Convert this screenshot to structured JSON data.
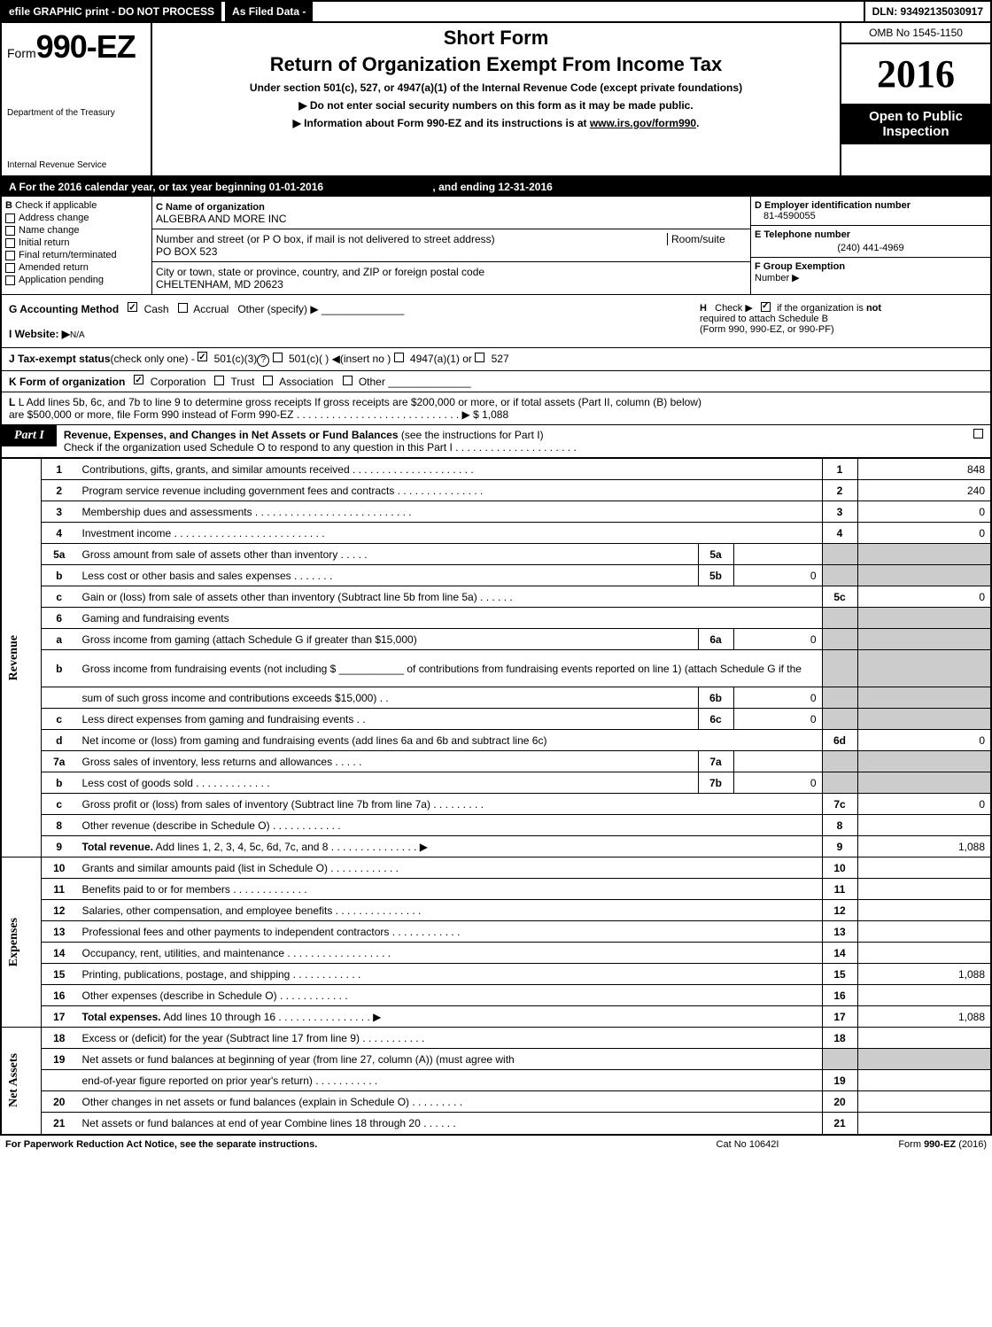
{
  "top": {
    "efile": "efile GRAPHIC print - DO NOT PROCESS",
    "asfiled": "As Filed Data -",
    "dln": "DLN: 93492135030917"
  },
  "header": {
    "form_word": "Form",
    "form_num": "990-EZ",
    "dept1": "Department of the Treasury",
    "dept2": "Internal Revenue Service",
    "short_form": "Short Form",
    "title": "Return of Organization Exempt From Income Tax",
    "subtitle": "Under section 501(c), 527, or 4947(a)(1) of the Internal Revenue Code (except private foundations)",
    "note1": "▶ Do not enter social security numbers on this form as it may be made public.",
    "note2": "▶ Information about Form 990-EZ and its instructions is at ",
    "note2_link": "www.irs.gov/form990",
    "omb": "OMB No 1545-1150",
    "year": "2016",
    "open1": "Open to Public",
    "open2": "Inspection"
  },
  "rowA": {
    "text": "A  For the 2016 calendar year, or tax year beginning 01-01-2016",
    "ending": ", and ending 12-31-2016"
  },
  "b": {
    "title": "B",
    "check_label": "Check if applicable",
    "items": [
      "Address change",
      "Name change",
      "Initial return",
      "Final return/terminated",
      "Amended return",
      "Application pending"
    ]
  },
  "c": {
    "label": "C",
    "name_label": "Name of organization",
    "name": "ALGEBRA AND MORE INC",
    "street_label": "Number and street (or P  O  box, if mail is not delivered to street address)",
    "room_label": "Room/suite",
    "street": "PO BOX 523",
    "city_label": "City or town, state or province, country, and ZIP or foreign postal code",
    "city": "CHELTENHAM, MD  20623"
  },
  "d": {
    "label": "D Employer identification number",
    "value": "81-4590055"
  },
  "e": {
    "label": "E Telephone number",
    "value": "(240) 441-4969"
  },
  "f": {
    "label": "F Group Exemption",
    "label2": "Number  ▶"
  },
  "g": {
    "label": "G Accounting Method",
    "cash": "Cash",
    "accrual": "Accrual",
    "other": "Other (specify) ▶"
  },
  "h": {
    "label": "H",
    "text1": "Check ▶",
    "text2": "if the organization is ",
    "not": "not",
    "text3": "required to attach Schedule B",
    "text4": "(Form 990, 990-EZ, or 990-PF)"
  },
  "i": {
    "label": "I Website: ▶",
    "value": "N/A"
  },
  "j": {
    "label": "J Tax-exempt status",
    "text": "(check only one) - ",
    "opts": [
      "501(c)(3)",
      "501(c)(  ) ◀(insert no )",
      "4947(a)(1) or",
      "527"
    ]
  },
  "k": {
    "label": "K Form of organization",
    "opts": [
      "Corporation",
      "Trust",
      "Association",
      "Other"
    ]
  },
  "l": {
    "text1": "L Add lines 5b, 6c, and 7b to line 9 to determine gross receipts  If gross receipts are $200,000 or more, or if total assets (Part II, column (B) below)",
    "text2": "are $500,000 or more, file Form 990 instead of Form 990-EZ  .  .  .  .  .  .  .  .  .  .  .  .  .  .  .  .  .  .  .  .  .  .  .  .  .  .  .  .  ▶ $ 1,088"
  },
  "part1": {
    "label": "Part I",
    "title": "Revenue, Expenses, and Changes in Net Assets or Fund Balances",
    "subtitle": "(see the instructions for Part I)",
    "checktext": "Check if the organization used Schedule O to respond to any question in this Part I .  .  .  .  .  .  .  .  .  .  .  .  .  .  .  .  .  .  .  .  ."
  },
  "sections": {
    "revenue": "Revenue",
    "expenses": "Expenses",
    "netassets": "Net Assets"
  },
  "lines": [
    {
      "n": "1",
      "desc": "Contributions, gifts, grants, and similar amounts received  .  .  .  .  .  .  .  .  .  .  .  .  .  .  .  .  .  .  .  .  .",
      "box": "1",
      "val": "848"
    },
    {
      "n": "2",
      "desc": "Program service revenue including government fees and contracts  .  .  .  .  .  .  .  .  .  .  .  .  .  .  .",
      "box": "2",
      "val": "240"
    },
    {
      "n": "3",
      "desc": "Membership dues and assessments  .  .  .  .  .  .  .  .  .  .  .  .  .  .  .  .  .  .  .  .  .  .  .  .  .  .  .",
      "box": "3",
      "val": "0"
    },
    {
      "n": "4",
      "desc": "Investment income  .  .  .  .  .  .  .  .  .  .  .  .  .  .  .  .  .  .  .  .  .  .  .  .  .  .",
      "box": "4",
      "val": "0"
    },
    {
      "n": "5a",
      "desc": "Gross amount from sale of assets other than inventory  .  .  .  .  .",
      "mid_box": "5a",
      "mid_val": "",
      "shaded": true
    },
    {
      "n": "b",
      "desc": "Less  cost or other basis and sales expenses  .  .  .  .  .  .  .",
      "mid_box": "5b",
      "mid_val": "0",
      "shaded": true
    },
    {
      "n": "c",
      "desc": "Gain or (loss) from sale of assets other than inventory (Subtract line 5b from line 5a) .  .  .  .  .  .",
      "box": "5c",
      "val": "0"
    },
    {
      "n": "6",
      "desc": "Gaming and fundraising events",
      "shaded": true,
      "nobox": true
    },
    {
      "n": "a",
      "desc": "Gross income from gaming (attach Schedule G if greater than $15,000)",
      "mid_box": "6a",
      "mid_val": "0",
      "shaded": true
    },
    {
      "n": "b",
      "desc": "Gross income from fundraising events (not including $ ___________ of contributions from fundraising events reported on line 1) (attach Schedule G if the",
      "shaded": true,
      "nobox": true,
      "tall": true
    },
    {
      "n": "",
      "desc": "sum of such gross income and contributions exceeds $15,000)   .  .",
      "mid_box": "6b",
      "mid_val": "0",
      "shaded": true
    },
    {
      "n": "c",
      "desc": "Less  direct expenses from gaming and fundraising events     .  .",
      "mid_box": "6c",
      "mid_val": "0",
      "shaded": true
    },
    {
      "n": "d",
      "desc": "Net income or (loss) from gaming and fundraising events (add lines 6a and 6b and subtract line 6c)",
      "box": "6d",
      "val": "0"
    },
    {
      "n": "7a",
      "desc": "Gross sales of inventory, less returns and allowances  .  .  .  .  .",
      "mid_box": "7a",
      "mid_val": "",
      "shaded": true
    },
    {
      "n": "b",
      "desc": "Less  cost of goods sold        .  .  .  .  .  .  .  .  .  .  .  .  .",
      "mid_box": "7b",
      "mid_val": "0",
      "shaded": true
    },
    {
      "n": "c",
      "desc": "Gross profit or (loss) from sales of inventory (Subtract line 7b from line 7a) .  .  .  .  .  .  .  .  .",
      "box": "7c",
      "val": "0"
    },
    {
      "n": "8",
      "desc": "Other revenue (describe in Schedule O)              .  .  .  .  .  .  .  .  .  .  .  .",
      "box": "8",
      "val": ""
    },
    {
      "n": "9",
      "desc": "Total revenue. Add lines 1, 2, 3, 4, 5c, 6d, 7c, and 8  .  .  .  .  .  .  .  .  .  .  .  .  .  .  .    ▶",
      "box": "9",
      "val": "1,088",
      "bold": true
    },
    {
      "n": "10",
      "desc": "Grants and similar amounts paid (list in Schedule O)       .  .  .  .  .  .  .  .  .  .  .  .",
      "box": "10",
      "val": ""
    },
    {
      "n": "11",
      "desc": "Benefits paid to or for members              .  .  .  .  .  .  .  .  .  .  .  .  .",
      "box": "11",
      "val": ""
    },
    {
      "n": "12",
      "desc": "Salaries, other compensation, and employee benefits  .  .  .  .  .  .  .  .  .  .  .  .  .  .  .",
      "box": "12",
      "val": ""
    },
    {
      "n": "13",
      "desc": "Professional fees and other payments to independent contractors  .  .  .  .  .  .  .  .  .  .  .  .",
      "box": "13",
      "val": ""
    },
    {
      "n": "14",
      "desc": "Occupancy, rent, utilities, and maintenance  .  .  .  .  .  .  .  .  .  .  .  .  .  .  .  .  .  .",
      "box": "14",
      "val": ""
    },
    {
      "n": "15",
      "desc": "Printing, publications, postage, and shipping         .  .  .  .  .  .  .  .  .  .  .  .",
      "box": "15",
      "val": "1,088"
    },
    {
      "n": "16",
      "desc": "Other expenses (describe in Schedule O)           .  .  .  .  .  .  .  .  .  .  .  .",
      "box": "16",
      "val": ""
    },
    {
      "n": "17",
      "desc": "Total expenses. Add lines 10 through 16      .  .  .  .  .  .  .  .  .  .  .  .  .  .  .  .    ▶",
      "box": "17",
      "val": "1,088",
      "bold": true
    },
    {
      "n": "18",
      "desc": "Excess or (deficit) for the year (Subtract line 17 from line 9)     .  .  .  .  .  .  .  .  .  .  .",
      "box": "18",
      "val": ""
    },
    {
      "n": "19",
      "desc": "Net assets or fund balances at beginning of year (from line 27, column (A)) (must agree with",
      "nobox": true,
      "shaded_right": true
    },
    {
      "n": "",
      "desc": "end-of-year figure reported on prior year's return)        .  .  .  .  .  .  .  .  .  .  .",
      "box": "19",
      "val": ""
    },
    {
      "n": "20",
      "desc": "Other changes in net assets or fund balances (explain in Schedule O)   .  .  .  .  .  .  .  .  .",
      "box": "20",
      "val": ""
    },
    {
      "n": "21",
      "desc": "Net assets or fund balances at end of year  Combine lines 18 through 20     .  .  .  .  .  .",
      "box": "21",
      "val": ""
    }
  ],
  "footer": {
    "left": "For Paperwork Reduction Act Notice, see the separate instructions.",
    "mid": "Cat No  10642I",
    "right": "Form 990-EZ (2016)",
    "right_bold": "990-EZ"
  }
}
